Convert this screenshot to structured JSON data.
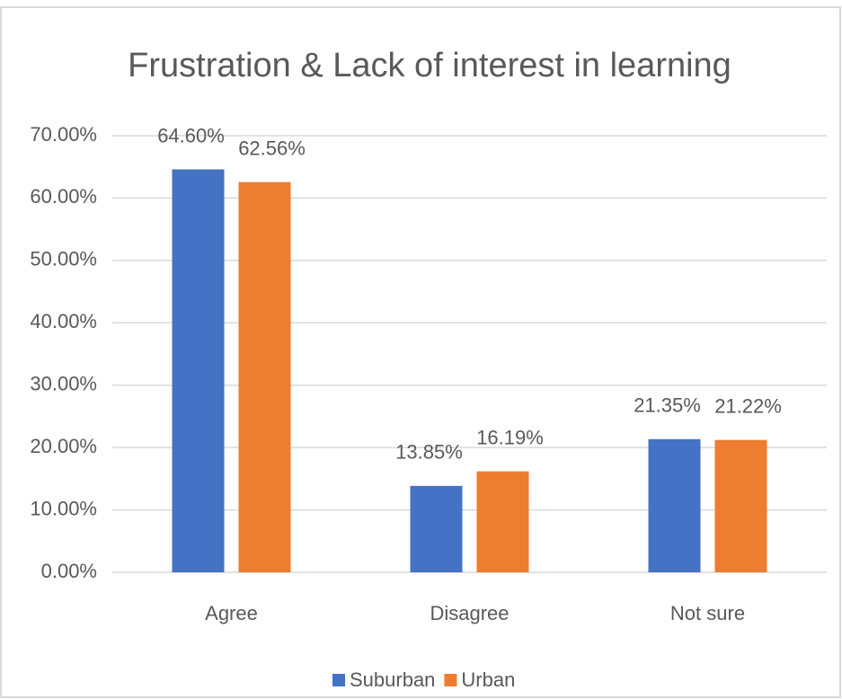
{
  "chart_data": {
    "type": "bar",
    "title": "Frustration & Lack of interest in learning",
    "categories": [
      "Agree",
      "Disagree",
      "Not sure"
    ],
    "series": [
      {
        "name": "Suburban",
        "color": "#4472c4",
        "values": [
          64.6,
          13.85,
          21.35
        ],
        "value_labels": [
          "64.60%",
          "13.85%",
          "21.35%"
        ]
      },
      {
        "name": "Urban",
        "color": "#ed7d31",
        "values": [
          62.56,
          16.19,
          21.22
        ],
        "value_labels": [
          "62.56%",
          "16.19%",
          "21.22%"
        ]
      }
    ],
    "ylim": [
      0,
      70
    ],
    "yticks": [
      {
        "value": 0,
        "label": "0.00%"
      },
      {
        "value": 10,
        "label": "10.00%"
      },
      {
        "value": 20,
        "label": "20.00%"
      },
      {
        "value": 30,
        "label": "30.00%"
      },
      {
        "value": 40,
        "label": "40.00%"
      },
      {
        "value": 50,
        "label": "50.00%"
      },
      {
        "value": 60,
        "label": "60.00%"
      },
      {
        "value": 70,
        "label": "70.00%"
      }
    ],
    "grid": true,
    "legend": "bottom"
  }
}
